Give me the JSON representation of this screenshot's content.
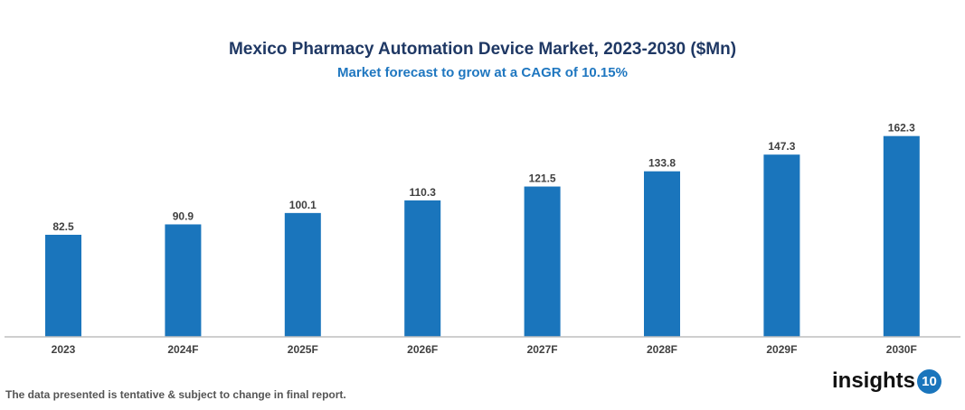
{
  "chart_data": {
    "type": "bar",
    "title": "Mexico Pharmacy Automation Device Market, 2023-2030 ($Mn)",
    "subtitle": "Market forecast to grow at a CAGR of 10.15%",
    "categories": [
      "2023",
      "2024F",
      "2025F",
      "2026F",
      "2027F",
      "2028F",
      "2029F",
      "2030F"
    ],
    "values": [
      82.5,
      90.9,
      100.1,
      110.3,
      121.5,
      133.8,
      147.3,
      162.3
    ],
    "value_labels": [
      "82.5",
      "90.9",
      "100.1",
      "110.3",
      "121.5",
      "133.8",
      "147.3",
      "162.3"
    ],
    "xlabel": "",
    "ylabel": "",
    "ylim": [
      0,
      200
    ],
    "grid": false,
    "bar_color": "#1a75bc"
  },
  "footer": {
    "note": "The data presented is tentative & subject to change in final report.",
    "logo_text": "insights",
    "logo_badge": "10"
  }
}
